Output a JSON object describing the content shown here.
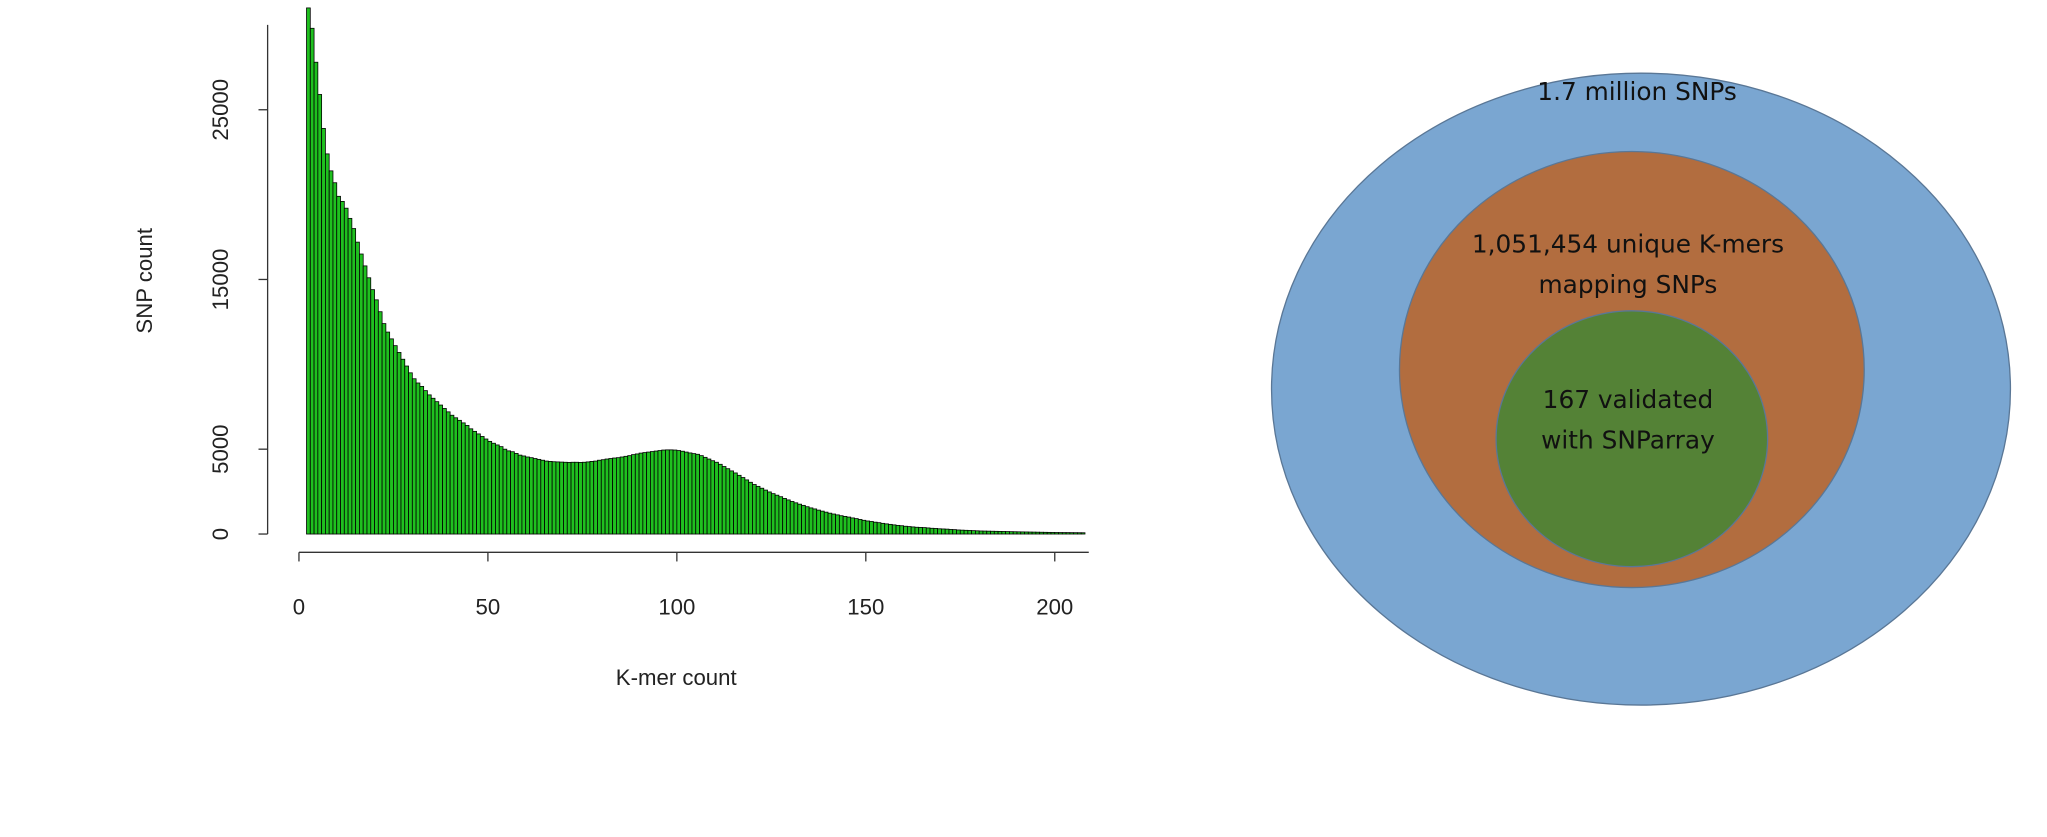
{
  "chart_data": {
    "type": "histogram",
    "x_label": "K-mer count",
    "y_label": "SNP count",
    "bins": [
      2,
      3,
      4,
      5,
      6,
      7,
      8,
      9,
      10,
      11,
      12,
      13,
      14,
      15,
      16,
      17,
      18,
      19,
      20,
      21,
      22,
      23,
      24,
      25,
      26,
      27,
      28,
      29,
      30,
      31,
      32,
      33,
      34,
      35,
      36,
      37,
      38,
      39,
      40,
      41,
      42,
      43,
      44,
      45,
      46,
      47,
      48,
      49,
      50,
      51,
      52,
      53,
      54,
      55,
      56,
      57,
      58,
      59,
      60,
      61,
      62,
      63,
      64,
      65,
      66,
      67,
      68,
      69,
      70,
      71,
      72,
      73,
      74,
      75,
      76,
      77,
      78,
      79,
      80,
      81,
      82,
      83,
      84,
      85,
      86,
      87,
      88,
      89,
      90,
      91,
      92,
      93,
      94,
      95,
      96,
      97,
      98,
      99,
      100,
      101,
      102,
      103,
      104,
      105,
      106,
      107,
      108,
      109,
      110,
      111,
      112,
      113,
      114,
      115,
      116,
      117,
      118,
      119,
      120,
      121,
      122,
      123,
      124,
      125,
      126,
      127,
      128,
      129,
      130,
      131,
      132,
      133,
      134,
      135,
      136,
      137,
      138,
      139,
      140,
      141,
      142,
      143,
      144,
      145,
      146,
      147,
      148,
      149,
      150,
      151,
      152,
      153,
      154,
      155,
      156,
      157,
      158,
      159,
      160,
      161,
      162,
      163,
      164,
      165,
      166,
      167,
      168,
      169,
      170,
      171,
      172,
      173,
      174,
      175,
      176,
      177,
      178,
      179,
      180,
      181,
      182,
      183,
      184,
      185,
      186,
      187,
      188,
      189,
      190,
      191,
      192,
      193,
      194,
      195,
      196,
      197,
      198,
      199,
      200,
      201,
      202,
      203,
      204,
      205,
      206,
      207,
      208
    ],
    "values": [
      31000,
      29800,
      27800,
      25900,
      23900,
      22400,
      21400,
      20700,
      19900,
      19600,
      19200,
      18600,
      18000,
      17200,
      16500,
      15800,
      15100,
      14400,
      13800,
      13100,
      12400,
      11900,
      11500,
      11100,
      10700,
      10300,
      9900,
      9500,
      9150,
      8900,
      8700,
      8450,
      8200,
      8000,
      7800,
      7600,
      7400,
      7200,
      7000,
      6850,
      6700,
      6550,
      6400,
      6200,
      6050,
      5900,
      5750,
      5600,
      5460,
      5350,
      5250,
      5150,
      5000,
      4900,
      4850,
      4750,
      4650,
      4600,
      4540,
      4500,
      4450,
      4400,
      4350,
      4300,
      4280,
      4260,
      4250,
      4240,
      4230,
      4220,
      4230,
      4230,
      4220,
      4230,
      4250,
      4280,
      4300,
      4350,
      4380,
      4420,
      4450,
      4480,
      4500,
      4540,
      4580,
      4620,
      4680,
      4720,
      4770,
      4800,
      4830,
      4860,
      4890,
      4920,
      4950,
      4960,
      4960,
      4950,
      4920,
      4880,
      4830,
      4780,
      4740,
      4700,
      4620,
      4520,
      4420,
      4320,
      4230,
      4110,
      3980,
      3850,
      3720,
      3600,
      3460,
      3330,
      3190,
      3050,
      2920,
      2810,
      2700,
      2590,
      2480,
      2380,
      2290,
      2200,
      2100,
      2010,
      1920,
      1840,
      1760,
      1690,
      1610,
      1540,
      1480,
      1410,
      1350,
      1290,
      1230,
      1180,
      1130,
      1080,
      1040,
      1000,
      950,
      910,
      860,
      810,
      770,
      740,
      700,
      670,
      630,
      600,
      570,
      540,
      510,
      490,
      460,
      440,
      420,
      400,
      390,
      380,
      360,
      340,
      330,
      310,
      300,
      290,
      270,
      260,
      240,
      230,
      220,
      210,
      200,
      190,
      180,
      175,
      170,
      165,
      160,
      155,
      150,
      145,
      140,
      135,
      130,
      126,
      122,
      118,
      114,
      110,
      106,
      102,
      98,
      94,
      90,
      88,
      86,
      84,
      82,
      80,
      78,
      76
    ],
    "color": "#1fc01f",
    "xlim": [
      0,
      209
    ],
    "xticks": [
      0,
      50,
      100,
      150,
      200
    ],
    "ylim": [
      0,
      30000
    ],
    "yticks": [
      0,
      5000,
      15000,
      25000
    ]
  },
  "diagram": {
    "circles": [
      {
        "label": [
          "1.7 million SNPs"
        ],
        "color": "#7aa6d1"
      },
      {
        "label": [
          "1,051,454 unique K-mers",
          "mapping SNPs"
        ],
        "color": "#b26d3f"
      },
      {
        "label": [
          "167 validated",
          "with SNParray"
        ],
        "color": "#548236"
      }
    ]
  }
}
